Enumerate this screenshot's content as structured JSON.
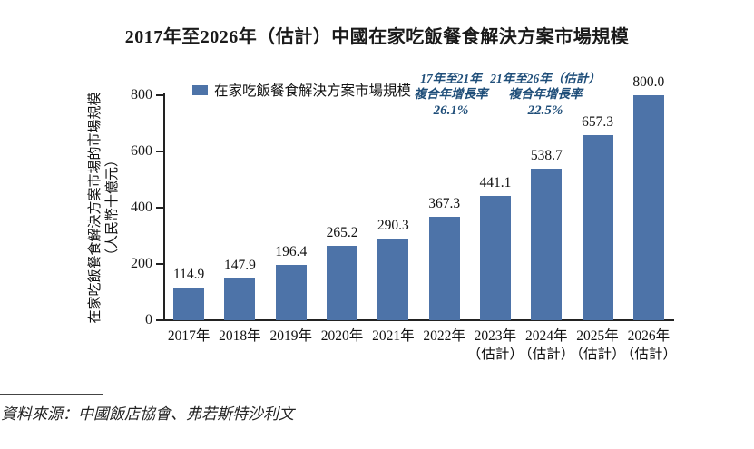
{
  "colors": {
    "bar": "#4d73a8",
    "annotation": "#1f4e79",
    "axis": "#222222"
  },
  "source": "資料來源：中國飯店協會、弗若斯特沙利文",
  "chart_data": {
    "type": "bar",
    "title": "2017年至2026年（估計）中國在家吃飯餐食解決方案市場規模",
    "legend": "在家吃飯餐食解決方案市場規模",
    "legend_position": "top-left",
    "ylabel": "在家吃飯餐食解決方案市場的市場規模",
    "ylabel_unit": "（人民幣十億元）",
    "ylim": [
      0,
      800
    ],
    "yticks": [
      0,
      200,
      400,
      600,
      800
    ],
    "grid": false,
    "categories": [
      [
        "2017年"
      ],
      [
        "2018年"
      ],
      [
        "2019年"
      ],
      [
        "2020年"
      ],
      [
        "2021年"
      ],
      [
        "2022年"
      ],
      [
        "2023年",
        "（估計）"
      ],
      [
        "2024年",
        "（估計）"
      ],
      [
        "2025年",
        "（估計）"
      ],
      [
        "2026年",
        "（估計）"
      ]
    ],
    "values": [
      114.9,
      147.9,
      196.4,
      265.2,
      290.3,
      367.3,
      441.1,
      538.7,
      657.3,
      800.0
    ],
    "annotations": [
      {
        "line1": "17年至21年",
        "line2": "複合年增長率",
        "value": "26.1%"
      },
      {
        "line1": "21年至26年（估計）",
        "line2": "複合年增長率",
        "value": "22.5%"
      }
    ]
  }
}
